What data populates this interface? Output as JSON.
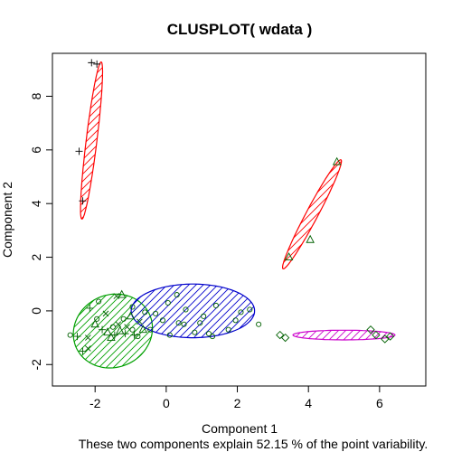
{
  "chart_data": {
    "type": "scatter",
    "title": "CLUSPLOT( wdata )",
    "xlabel": "Component 1",
    "ylabel": "Component 2",
    "subtitle": "These two components explain 52.15 % of the point variability.",
    "xlim": [
      -3.2,
      7.3
    ],
    "ylim": [
      -2.8,
      9.6
    ],
    "xticks": [
      -2,
      0,
      2,
      4,
      6
    ],
    "yticks": [
      -2,
      0,
      2,
      4,
      6,
      8
    ],
    "clusters": [
      {
        "color": "#ff0000",
        "marker": "plus",
        "ellipse": {
          "cx": -2.1,
          "cy": 6.35,
          "rx": 2.95,
          "ry": 0.2,
          "angle_deg": 83
        },
        "points": [
          [
            -1.95,
            9.2
          ],
          [
            -2.45,
            5.95
          ],
          [
            -2.35,
            4.1
          ],
          [
            -2.1,
            9.25
          ]
        ]
      },
      {
        "color": "#ff0000",
        "marker": "triangle",
        "ellipse": {
          "cx": 4.1,
          "cy": 3.6,
          "rx": 2.3,
          "ry": 0.22,
          "angle_deg": 62
        },
        "points": [
          [
            4.8,
            5.55
          ],
          [
            3.45,
            2.0
          ],
          [
            4.05,
            2.65
          ]
        ]
      },
      {
        "color": "#00a000",
        "marker": "mixed",
        "ellipse": {
          "cx": -1.5,
          "cy": -0.75,
          "rx": 1.5,
          "ry": 1.35,
          "angle_deg": 25
        },
        "points": [
          [
            -2.5,
            -0.95
          ],
          [
            -2.2,
            -1.0
          ],
          [
            -2.0,
            -0.5
          ],
          [
            -1.95,
            -0.3
          ],
          [
            -1.8,
            -0.7
          ],
          [
            -1.7,
            -0.1
          ],
          [
            -1.65,
            -0.8
          ],
          [
            -1.5,
            -0.6
          ],
          [
            -1.45,
            -0.9
          ],
          [
            -1.35,
            -0.5
          ],
          [
            -1.3,
            -0.75
          ],
          [
            -1.2,
            -0.3
          ],
          [
            -1.15,
            -0.85
          ],
          [
            -1.1,
            -0.6
          ],
          [
            -1.0,
            -0.2
          ],
          [
            -0.95,
            -0.7
          ],
          [
            -0.9,
            -0.9
          ],
          [
            -0.75,
            -0.4
          ],
          [
            -0.65,
            -0.7
          ],
          [
            -1.9,
            0.35
          ],
          [
            -2.15,
            0.1
          ],
          [
            -1.4,
            0.55
          ],
          [
            -1.25,
            0.6
          ],
          [
            -2.7,
            -0.9
          ],
          [
            -2.35,
            -1.5
          ],
          [
            -2.2,
            -1.4
          ],
          [
            -1.55,
            -1.0
          ],
          [
            -0.8,
            -0.95
          ]
        ]
      },
      {
        "color": "#0000cc",
        "marker": "circle",
        "ellipse": {
          "cx": 0.75,
          "cy": 0.0,
          "rx": 2.3,
          "ry": 1.0,
          "angle_deg": 0
        },
        "points": [
          [
            -0.95,
            0.15
          ],
          [
            -0.6,
            -0.05
          ],
          [
            -0.3,
            -0.1
          ],
          [
            -0.1,
            -0.35
          ],
          [
            0.1,
            -0.9
          ],
          [
            0.3,
            0.6
          ],
          [
            0.5,
            -0.5
          ],
          [
            0.55,
            0.05
          ],
          [
            0.8,
            -0.8
          ],
          [
            0.95,
            -0.45
          ],
          [
            1.2,
            -0.85
          ],
          [
            1.4,
            0.2
          ],
          [
            1.75,
            -0.7
          ],
          [
            1.95,
            -0.35
          ],
          [
            2.1,
            -0.05
          ],
          [
            2.35,
            0.05
          ],
          [
            2.6,
            -0.5
          ],
          [
            0.05,
            0.3
          ],
          [
            0.35,
            -0.45
          ],
          [
            1.05,
            -0.2
          ],
          [
            1.3,
            -0.95
          ],
          [
            -0.45,
            -0.7
          ]
        ]
      },
      {
        "color": "#cc00cc",
        "marker": "diamond",
        "ellipse": {
          "cx": 5.0,
          "cy": -0.9,
          "rx": 1.9,
          "ry": 0.18,
          "angle_deg": 0
        },
        "points": [
          [
            3.2,
            -0.9
          ],
          [
            3.35,
            -1.0
          ],
          [
            5.75,
            -0.7
          ],
          [
            5.9,
            -0.9
          ],
          [
            6.15,
            -1.05
          ],
          [
            6.3,
            -0.95
          ]
        ]
      }
    ]
  }
}
